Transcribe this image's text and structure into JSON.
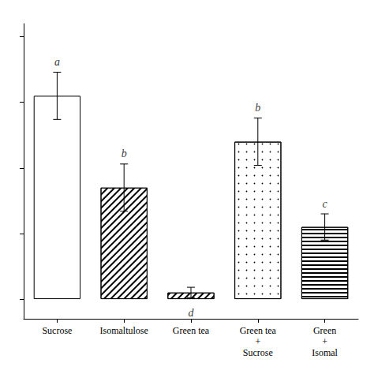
{
  "chart_data": {
    "type": "bar",
    "categories": [
      "Sucrose",
      "Isomaltulose",
      "Green tea",
      "Green tea\n+\nSucrose",
      "Green\n+\nIsomal"
    ],
    "values": [
      155,
      85,
      5,
      120,
      55
    ],
    "errors": [
      18,
      18,
      4,
      18,
      10
    ],
    "annotations": [
      "a",
      "b",
      "d",
      "b",
      "c"
    ],
    "color": "#ffffff",
    "ylim": [
      -15,
      210
    ],
    "yticks": [
      0,
      50,
      100,
      150,
      200
    ],
    "grid": false,
    "tick_labels": "x"
  }
}
